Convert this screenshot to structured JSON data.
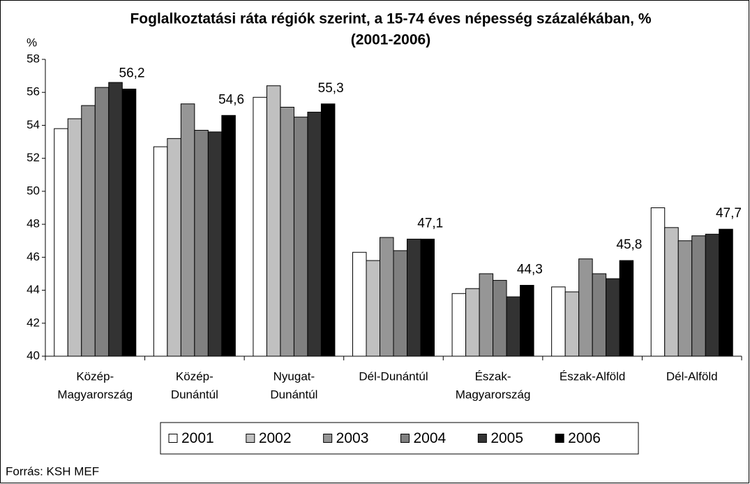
{
  "chart_data": {
    "type": "bar",
    "title": [
      "Foglalkoztatási ráta régiók szerint, a 15-74 éves népesség százalékában, %",
      "(2001-2006)"
    ],
    "y_label": "%",
    "source": "Forrás: KSH MEF",
    "categories": [
      [
        "Közép-",
        "Magyarország"
      ],
      [
        "Közép-",
        "Dunántúl"
      ],
      [
        "Nyugat-",
        "Dunántúl"
      ],
      [
        "Dél-Dunántúl"
      ],
      [
        "Észak-",
        "Magyarország"
      ],
      [
        "Észak-Alföld"
      ],
      [
        "Dél-Alföld"
      ]
    ],
    "series": [
      {
        "name": "2001",
        "color": "#ffffff",
        "values": [
          53.8,
          52.7,
          55.7,
          46.3,
          43.8,
          44.2,
          49.0
        ]
      },
      {
        "name": "2002",
        "color": "#c0c0c0",
        "values": [
          54.4,
          53.2,
          56.4,
          45.8,
          44.1,
          43.9,
          47.8
        ]
      },
      {
        "name": "2003",
        "color": "#969696",
        "values": [
          55.2,
          55.3,
          55.1,
          47.2,
          45.0,
          45.9,
          47.0
        ]
      },
      {
        "name": "2004",
        "color": "#808080",
        "values": [
          56.3,
          53.7,
          54.5,
          46.4,
          44.6,
          45.0,
          47.3
        ]
      },
      {
        "name": "2005",
        "color": "#333333",
        "values": [
          56.6,
          53.6,
          54.8,
          47.1,
          43.6,
          44.7,
          47.4
        ]
      },
      {
        "name": "2006",
        "color": "#000000",
        "values": [
          56.2,
          54.6,
          55.3,
          47.1,
          44.3,
          45.8,
          47.7
        ],
        "value_labels": [
          "56,2",
          "54,6",
          "55,3",
          "47,1",
          "44,3",
          "45,8",
          "47,7"
        ]
      }
    ],
    "ylim": [
      40,
      58
    ],
    "yticks": [
      40,
      42,
      44,
      46,
      48,
      50,
      52,
      54,
      56,
      58
    ],
    "grid": false
  }
}
